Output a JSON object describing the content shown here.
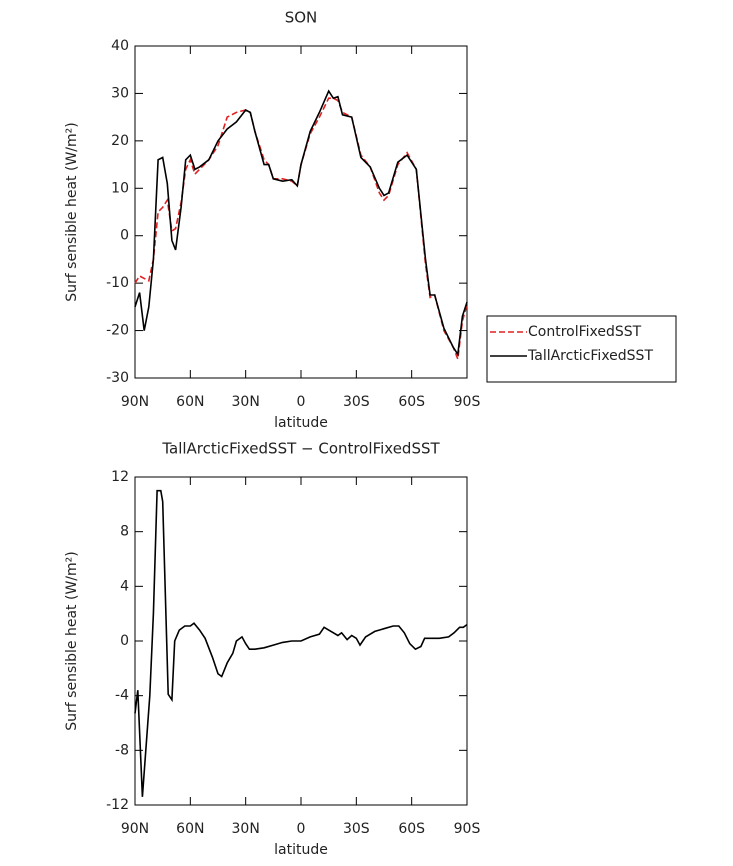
{
  "chart_data": [
    {
      "type": "line",
      "title": "SON",
      "xlabel": "latitude",
      "ylabel": "Surf sensible heat (W/m²)",
      "x": [
        90,
        87.5,
        85,
        82.5,
        80,
        77.5,
        75,
        72.5,
        70,
        68,
        65,
        62.5,
        60,
        57.5,
        55,
        50,
        45,
        40,
        35,
        30,
        27.5,
        25,
        20,
        17.5,
        15,
        10,
        5,
        2,
        0,
        -5,
        -10,
        -15,
        -17.5,
        -20,
        -22.5,
        -27.5,
        -32.5,
        -37.5,
        -42.5,
        -45,
        -47.5,
        -52.5,
        -57.5,
        -62.5,
        -67.5,
        -70,
        -72.5,
        -77.5,
        -82.5,
        -85,
        -87.5,
        -90
      ],
      "series": [
        {
          "name": "ControlFixedSST",
          "color": "#e02020",
          "line_style": "dashed",
          "values": [
            -10,
            -8.5,
            -9,
            -9.5,
            -5,
            5,
            6,
            7.5,
            1,
            1.5,
            7,
            14,
            16,
            13,
            14,
            16,
            19,
            25,
            26,
            26.5,
            26,
            22,
            16,
            15,
            12,
            12,
            11.5,
            10.5,
            15,
            21.5,
            25,
            29,
            29,
            28.5,
            26,
            25,
            17,
            14.5,
            9,
            7.5,
            8.5,
            15,
            17.5,
            14,
            -6,
            -13,
            -12.5,
            -20,
            -23.5,
            -26,
            -18,
            -14.5
          ]
        },
        {
          "name": "TallArcticFixedSST",
          "color": "#000000",
          "line_style": "solid",
          "values": [
            -15,
            -12,
            -20,
            -15,
            -5,
            16,
            16.5,
            11,
            -1,
            -3,
            6,
            16,
            17,
            14,
            14.5,
            16,
            20,
            22.5,
            24,
            26.5,
            26,
            22,
            15,
            15,
            12,
            11.5,
            11.8,
            10.5,
            15,
            22,
            26,
            30.5,
            29,
            29.3,
            25.5,
            25,
            16.5,
            14.5,
            10,
            8.5,
            9,
            15.5,
            17,
            14,
            -5,
            -12.5,
            -12.5,
            -19.5,
            -23.5,
            -25,
            -17,
            -14
          ]
        }
      ],
      "xlim": [
        90,
        -90
      ],
      "xticks": [
        {
          "value": 90,
          "label": "90N"
        },
        {
          "value": 60,
          "label": "60N"
        },
        {
          "value": 30,
          "label": "30N"
        },
        0,
        {
          "value": -30,
          "label": "30S"
        },
        {
          "value": -60,
          "label": "60S"
        },
        {
          "value": -90,
          "label": "90S"
        }
      ],
      "ylim": [
        -30,
        40
      ],
      "yticks": [
        -30,
        -20,
        -10,
        0,
        10,
        20,
        30,
        40
      ],
      "legend": "right"
    },
    {
      "type": "line",
      "title": "TallArcticFixedSST − ControlFixedSST",
      "xlabel": "latitude",
      "ylabel": "Surf sensible heat (W/m²)",
      "x": [
        90,
        88.5,
        86,
        82,
        80,
        78,
        76,
        75,
        72,
        70,
        68.5,
        66,
        63,
        60,
        58,
        55,
        52,
        48,
        45,
        43,
        40,
        37,
        35,
        32,
        30,
        28,
        25,
        20,
        15,
        10,
        5,
        0,
        -5,
        -10,
        -12.5,
        -15,
        -20,
        -22,
        -25,
        -27.5,
        -30,
        -32,
        -35,
        -40,
        -45,
        -50,
        -53,
        -56,
        -59,
        -62,
        -65,
        -67,
        -70,
        -75,
        -80,
        -83,
        -86,
        -88,
        -90
      ],
      "values": [
        -5.3,
        -3.6,
        -11.4,
        -4,
        2,
        11,
        11,
        10.2,
        -3.9,
        -4.3,
        0,
        0.8,
        1.1,
        1.1,
        1.3,
        0.8,
        0.2,
        -1.2,
        -2.4,
        -2.6,
        -1.6,
        -0.9,
        0,
        0.3,
        -0.2,
        -0.6,
        -0.6,
        -0.5,
        -0.3,
        -0.1,
        0,
        0,
        0.3,
        0.5,
        1,
        0.8,
        0.4,
        0.6,
        0.1,
        0.4,
        0.2,
        -0.3,
        0.3,
        0.7,
        0.9,
        1.1,
        1.1,
        0.6,
        -0.2,
        -0.6,
        -0.4,
        0.2,
        0.2,
        0.2,
        0.3,
        0.6,
        1,
        1,
        1.2
      ],
      "color": "#000000",
      "xlim": [
        90,
        -90
      ],
      "xticks": [
        {
          "value": 90,
          "label": "90N"
        },
        {
          "value": 60,
          "label": "60N"
        },
        {
          "value": 30,
          "label": "30N"
        },
        0,
        {
          "value": -30,
          "label": "30S"
        },
        {
          "value": -60,
          "label": "60S"
        },
        {
          "value": -90,
          "label": "90S"
        }
      ],
      "ylim": [
        -12,
        12
      ],
      "yticks": [
        -12,
        -8,
        -4,
        0,
        4,
        8,
        12
      ]
    }
  ]
}
